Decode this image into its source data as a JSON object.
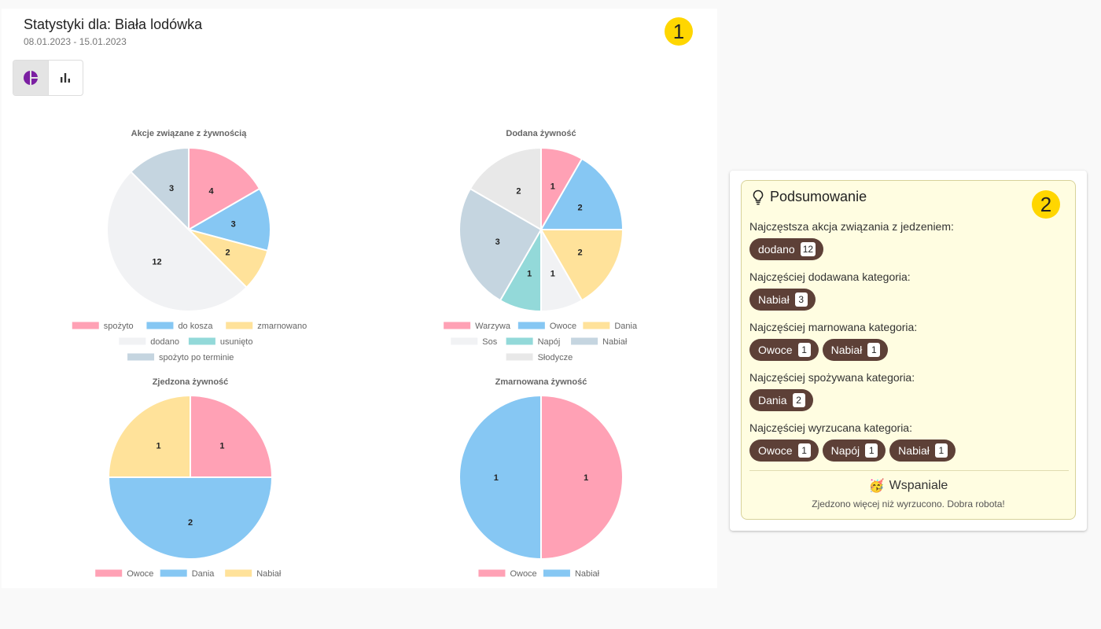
{
  "header": {
    "title": "Statystyki dla: Biała lodówka",
    "date_range": "08.01.2023 - 15.01.2023",
    "badge": "1"
  },
  "view_toggle": {
    "options": [
      "pie-chart-icon",
      "bar-chart-icon"
    ],
    "active": "pie-chart-icon"
  },
  "chart_data": [
    {
      "type": "pie",
      "title": "Akcje związane z żywnością",
      "categories": [
        "spożyto",
        "do kosza",
        "zmarnowano",
        "dodano",
        "usunięto",
        "spożyto po terminie"
      ],
      "values": [
        4,
        3,
        2,
        12,
        0,
        3
      ],
      "colors": [
        "#ffa1b5",
        "#86c7f3",
        "#ffe29a",
        "#f1f2f4",
        "#93d9d9",
        "#c5d5e0"
      ],
      "legend_rows": [
        [
          0,
          1,
          2
        ],
        [
          3,
          4
        ],
        [
          5
        ]
      ]
    },
    {
      "type": "pie",
      "title": "Dodana żywność",
      "categories": [
        "Warzywa",
        "Owoce",
        "Dania",
        "Sos",
        "Napój",
        "Nabiał",
        "Słodycze"
      ],
      "values": [
        1,
        2,
        2,
        1,
        1,
        3,
        2
      ],
      "colors": [
        "#ffa1b5",
        "#86c7f3",
        "#ffe29a",
        "#f1f2f4",
        "#93d9d9",
        "#c5d5e0",
        "#e8e8e8"
      ],
      "legend_rows": [
        [
          0,
          1,
          2
        ],
        [
          3,
          4,
          5
        ],
        [
          6
        ]
      ]
    },
    {
      "type": "pie",
      "title": "Zjedzona żywność",
      "categories": [
        "Owoce",
        "Dania",
        "Nabiał"
      ],
      "values": [
        1,
        2,
        1
      ],
      "colors": [
        "#ffa1b5",
        "#86c7f3",
        "#ffe29a"
      ],
      "legend_rows": [
        [
          0,
          1,
          2
        ]
      ]
    },
    {
      "type": "pie",
      "title": "Zmarnowana żywność",
      "categories": [
        "Owoce",
        "Nabiał"
      ],
      "values": [
        1,
        1
      ],
      "colors": [
        "#ffa1b5",
        "#86c7f3"
      ],
      "legend_rows": [
        [
          0,
          1
        ]
      ]
    }
  ],
  "summary": {
    "title": "Podsumowanie",
    "badge": "2",
    "sections": [
      {
        "label": "Najczęstsza akcja związania z jedzeniem:",
        "chips": [
          {
            "name": "dodano",
            "count": "12"
          }
        ]
      },
      {
        "label": "Najczęściej dodawana kategoria:",
        "chips": [
          {
            "name": "Nabiał",
            "count": "3"
          }
        ]
      },
      {
        "label": "Najczęściej marnowana kategoria:",
        "chips": [
          {
            "name": "Owoce",
            "count": "1"
          },
          {
            "name": "Nabiał",
            "count": "1"
          }
        ]
      },
      {
        "label": "Najczęściej spożywana kategoria:",
        "chips": [
          {
            "name": "Dania",
            "count": "2"
          }
        ]
      },
      {
        "label": "Najczęściej wyrzucana kategoria:",
        "chips": [
          {
            "name": "Owoce",
            "count": "1"
          },
          {
            "name": "Napój",
            "count": "1"
          },
          {
            "name": "Nabiał",
            "count": "1"
          }
        ]
      }
    ],
    "verdict_emoji": "🥳",
    "verdict_title": "Wspaniale",
    "verdict_text": "Zjedzono więcej niż wyrzucono. Dobra robota!"
  }
}
